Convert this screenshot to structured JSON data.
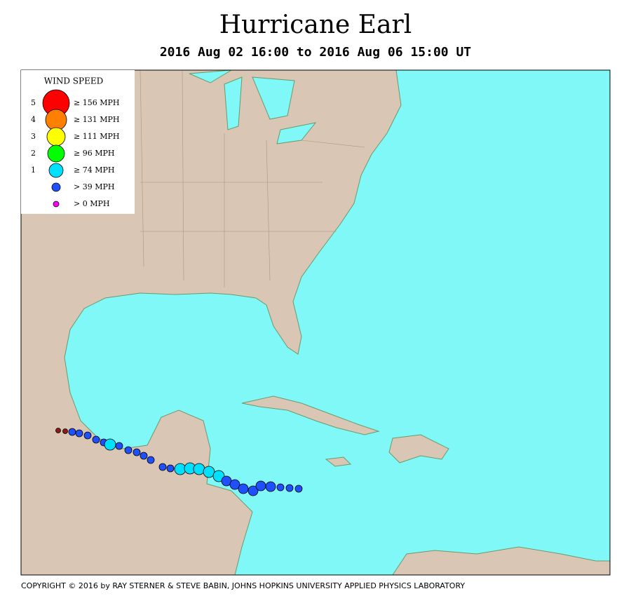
{
  "title": "Hurricane Earl",
  "subtitle": "2016 Aug 02 16:00 to 2016 Aug 06 15:00 UT",
  "legend": {
    "title": "WIND SPEED",
    "items": [
      {
        "category": "5",
        "label": "≥ 156 MPH",
        "color": "#ff0000"
      },
      {
        "category": "4",
        "label": "≥ 131 MPH",
        "color": "#ff7f00"
      },
      {
        "category": "3",
        "label": "≥ 111 MPH",
        "color": "#ffff00"
      },
      {
        "category": "2",
        "label": "≥ 96 MPH",
        "color": "#00ff00"
      },
      {
        "category": "1",
        "label": "≥ 74 MPH",
        "color": "#00e0ff"
      },
      {
        "label": "> 39 MPH",
        "color": "#1f50ff"
      },
      {
        "label": "> 0 MPH",
        "color": "#ff00ff"
      }
    ]
  },
  "copyright": "COPYRIGHT © 2016 by RAY STERNER & STEVE BABIN, JOHNS HOPKINS UNIVERSITY APPLIED PHYSICS LABORATORY"
}
